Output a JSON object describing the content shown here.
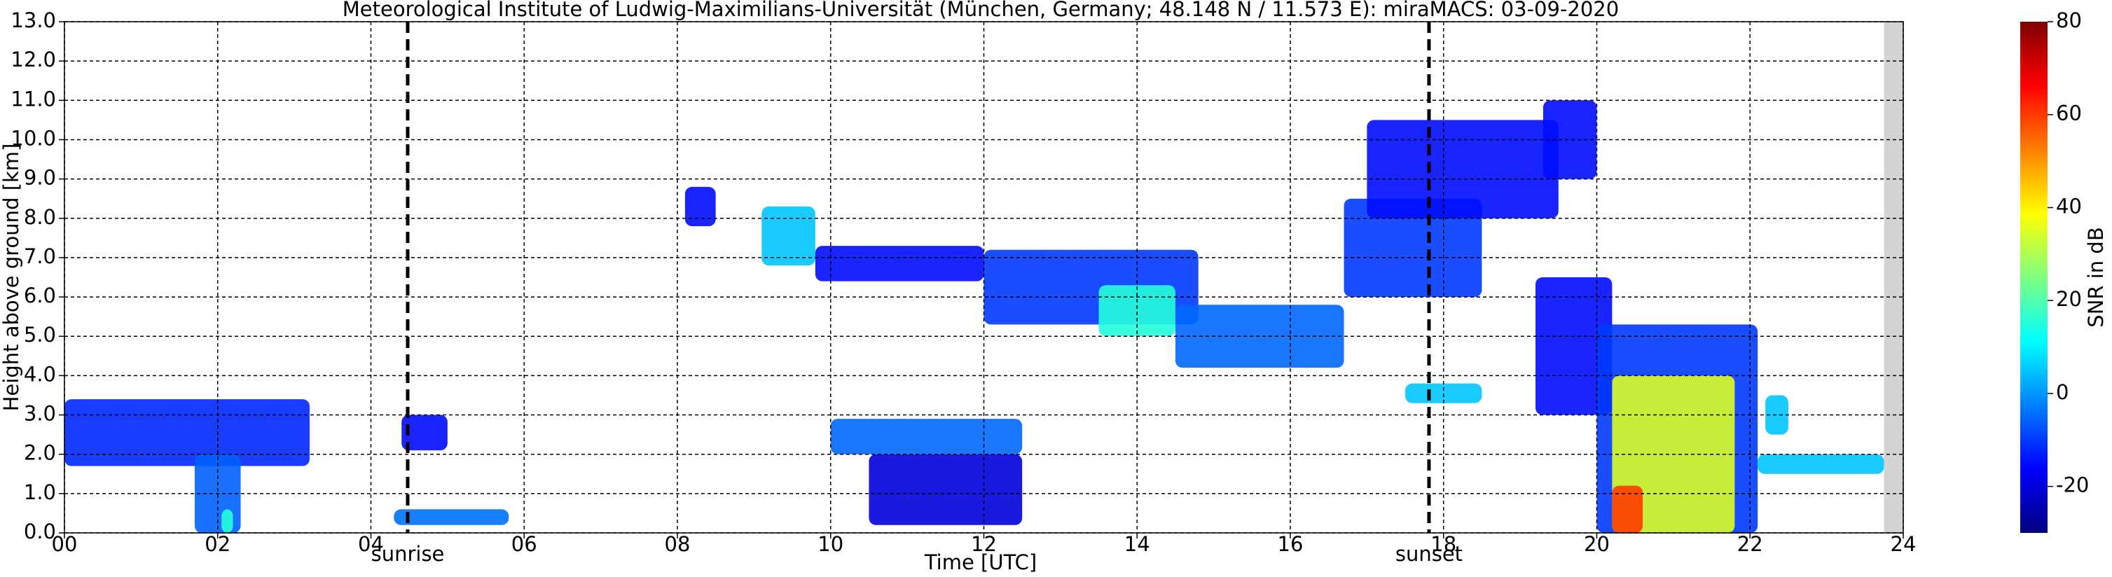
{
  "chart_data": {
    "type": "heatmap",
    "title": "Meteorological Institute of Ludwig-Maximilians-Universität (München, Germany; 48.148 N / 11.573 E):    miraMACS: 03-09-2020",
    "x_label": "Time [UTC]",
    "y_label": "Height above ground [km]",
    "colorbar_label": "SNR in dB",
    "colormap": "jet",
    "grid": true,
    "xlim": [
      0,
      24
    ],
    "xticks": [
      {
        "value": 0,
        "label": "00"
      },
      {
        "value": 2,
        "label": "02"
      },
      {
        "value": 4,
        "label": "04"
      },
      {
        "value": 6,
        "label": "06"
      },
      {
        "value": 8,
        "label": "08"
      },
      {
        "value": 10,
        "label": "10"
      },
      {
        "value": 12,
        "label": "12"
      },
      {
        "value": 14,
        "label": "14"
      },
      {
        "value": 16,
        "label": "16"
      },
      {
        "value": 18,
        "label": "18"
      },
      {
        "value": 20,
        "label": "20"
      },
      {
        "value": 22,
        "label": "22"
      },
      {
        "value": 24,
        "label": "24"
      }
    ],
    "ylim": [
      0,
      13
    ],
    "yticks": [
      {
        "value": 0,
        "label": "0.0"
      },
      {
        "value": 1,
        "label": "1.0"
      },
      {
        "value": 2,
        "label": "2.0"
      },
      {
        "value": 3,
        "label": "3.0"
      },
      {
        "value": 4,
        "label": "4.0"
      },
      {
        "value": 5,
        "label": "5.0"
      },
      {
        "value": 6,
        "label": "6.0"
      },
      {
        "value": 7,
        "label": "7.0"
      },
      {
        "value": 8,
        "label": "8.0"
      },
      {
        "value": 9,
        "label": "9.0"
      },
      {
        "value": 10,
        "label": "10.0"
      },
      {
        "value": 11,
        "label": "11.0"
      },
      {
        "value": 12,
        "label": "12.0"
      },
      {
        "value": 13,
        "label": "13.0"
      }
    ],
    "clim": [
      -30,
      80
    ],
    "cticks": [
      -20,
      0,
      20,
      40,
      60,
      80
    ],
    "events": [
      {
        "name": "sunrise",
        "time": 4.48
      },
      {
        "name": "sunset",
        "time": 17.81
      }
    ],
    "no_data": [
      23.75,
      24
    ],
    "echoes": [
      {
        "t0": 0.0,
        "t1": 3.2,
        "h0": 1.7,
        "h1": 3.4,
        "snr": -12
      },
      {
        "t0": 1.7,
        "t1": 2.3,
        "h0": 0.0,
        "h1": 2.0,
        "snr": -6
      },
      {
        "t0": 2.05,
        "t1": 2.2,
        "h0": 0.0,
        "h1": 0.6,
        "snr": 15
      },
      {
        "t0": 4.4,
        "t1": 5.0,
        "h0": 2.1,
        "h1": 3.0,
        "snr": -15
      },
      {
        "t0": 4.3,
        "t1": 5.8,
        "h0": 0.2,
        "h1": 0.6,
        "snr": -4
      },
      {
        "t0": 8.1,
        "t1": 8.5,
        "h0": 7.8,
        "h1": 8.8,
        "snr": -15
      },
      {
        "t0": 9.1,
        "t1": 9.8,
        "h0": 6.8,
        "h1": 8.3,
        "snr": 5
      },
      {
        "t0": 9.8,
        "t1": 12.0,
        "h0": 6.4,
        "h1": 7.3,
        "snr": -15
      },
      {
        "t0": 12.0,
        "t1": 14.8,
        "h0": 5.3,
        "h1": 7.2,
        "snr": -10
      },
      {
        "t0": 13.5,
        "t1": 14.5,
        "h0": 5.0,
        "h1": 6.3,
        "snr": 15
      },
      {
        "t0": 14.5,
        "t1": 16.7,
        "h0": 4.2,
        "h1": 5.8,
        "snr": -5
      },
      {
        "t0": 10.0,
        "t1": 12.5,
        "h0": 2.0,
        "h1": 2.9,
        "snr": -5
      },
      {
        "t0": 10.5,
        "t1": 12.5,
        "h0": 0.2,
        "h1": 2.0,
        "snr": -20
      },
      {
        "t0": 16.7,
        "t1": 18.5,
        "h0": 6.0,
        "h1": 8.5,
        "snr": -10
      },
      {
        "t0": 17.0,
        "t1": 19.5,
        "h0": 8.0,
        "h1": 10.5,
        "snr": -15
      },
      {
        "t0": 19.3,
        "t1": 20.0,
        "h0": 9.0,
        "h1": 11.0,
        "snr": -15
      },
      {
        "t0": 17.5,
        "t1": 18.5,
        "h0": 3.3,
        "h1": 3.8,
        "snr": 5
      },
      {
        "t0": 19.2,
        "t1": 20.2,
        "h0": 3.0,
        "h1": 6.5,
        "snr": -15
      },
      {
        "t0": 20.0,
        "t1": 22.1,
        "h0": 0.0,
        "h1": 5.3,
        "snr": -10
      },
      {
        "t0": 20.2,
        "t1": 21.8,
        "h0": 0.0,
        "h1": 4.0,
        "snr": 35
      },
      {
        "t0": 20.2,
        "t1": 20.6,
        "h0": 0.0,
        "h1": 1.2,
        "snr": 60
      },
      {
        "t0": 22.1,
        "t1": 23.75,
        "h0": 1.5,
        "h1": 2.0,
        "snr": 5
      },
      {
        "t0": 22.2,
        "t1": 22.5,
        "h0": 2.5,
        "h1": 3.5,
        "snr": 5
      }
    ]
  }
}
